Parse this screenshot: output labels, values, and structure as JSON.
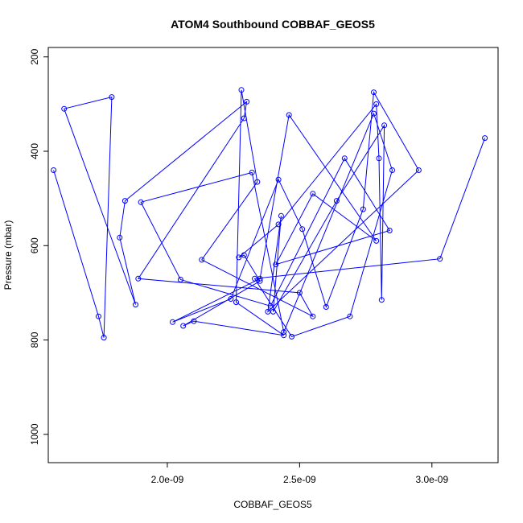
{
  "chart_data": {
    "type": "line",
    "title": "ATOM4 Southbound COBBAF_GEOS5",
    "xlabel": "COBBAF_GEOS5",
    "ylabel": "Pressure (mbar)",
    "xlim": [
      1.55e-09,
      3.25e-09
    ],
    "ylim": [
      1060,
      180
    ],
    "y_reversed": true,
    "grid": false,
    "legend": "none",
    "x_ticks": [
      {
        "value": 2e-09,
        "label": "2.0e-09"
      },
      {
        "value": 2.5e-09,
        "label": "2.5e-09"
      },
      {
        "value": 3e-09,
        "label": "3.0e-09"
      }
    ],
    "y_ticks": [
      {
        "value": 200,
        "label": "200"
      },
      {
        "value": 400,
        "label": "400"
      },
      {
        "value": 600,
        "label": "600"
      },
      {
        "value": 800,
        "label": "800"
      },
      {
        "value": 1000,
        "label": "1000"
      }
    ],
    "series": [
      {
        "color": "#0000ff",
        "marker": "open-circle",
        "x": [
          1.57e-09,
          1.74e-09,
          1.76e-09,
          1.79e-09,
          1.61e-09,
          1.88e-09,
          1.82e-09,
          1.84e-09,
          2.3e-09,
          2.29e-09,
          1.89e-09,
          2.5e-09,
          2.55e-09,
          2.13e-09,
          2.34e-09,
          2.28e-09,
          2.26e-09,
          2.44e-09,
          2.1e-09,
          2.06e-09,
          2.35e-09,
          2.29e-09,
          2.27e-09,
          2.42e-09,
          2.79e-09,
          2.8e-09,
          2.81e-09,
          2.82e-09,
          2.64e-09,
          2.4e-09,
          2.43e-09,
          2.38e-09,
          2.95e-09,
          2.78e-09,
          2.74e-09,
          2.6e-09,
          2.51e-09,
          2.42e-09,
          2.24e-09,
          2.02e-09,
          2.35e-09,
          2.46e-09,
          2.79e-09,
          2.55e-09,
          2.41e-09,
          2.84e-09,
          2.67e-09,
          2.39e-09,
          2.05e-09,
          1.9e-09,
          2.32e-09,
          2.44e-09,
          2.78e-09,
          2.85e-09,
          2.69e-09,
          2.47e-09,
          2.33e-09,
          3.03e-09,
          3.2e-09
        ],
        "y": [
          440,
          750,
          795,
          285,
          310,
          725,
          583,
          505,
          295,
          330,
          670,
          700,
          750,
          630,
          465,
          270,
          720,
          790,
          760,
          770,
          675,
          620,
          625,
          555,
          300,
          415,
          715,
          345,
          505,
          740,
          537,
          740,
          440,
          275,
          523,
          730,
          565,
          460,
          713,
          762,
          670,
          323,
          590,
          490,
          640,
          568,
          415,
          728,
          672,
          508,
          445,
          783,
          320,
          440,
          750,
          793,
          670,
          628,
          372
        ]
      }
    ]
  }
}
